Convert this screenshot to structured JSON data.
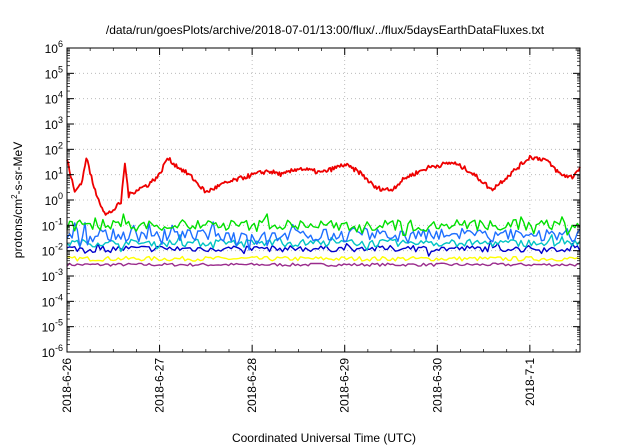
{
  "chart_data": {
    "type": "line",
    "title": "/data/run/goesPlots/archive/2018-07-01/13:00/flux/../flux/5daysEarthDataFluxes.txt",
    "xlabel": "Coordinated Universal Time (UTC)",
    "ylabel": {
      "pre": "protons/cm",
      "sup": "2",
      "post": "-s-sr-MeV"
    },
    "y_scale": "log",
    "ylim_exponent": [
      -6,
      6
    ],
    "y_ticks": [
      {
        "exp": "-6",
        "value": 1e-06
      },
      {
        "exp": "-5",
        "value": 1e-05
      },
      {
        "exp": "-4",
        "value": 0.0001
      },
      {
        "exp": "-3",
        "value": 0.001
      },
      {
        "exp": "-2",
        "value": 0.01
      },
      {
        "exp": "-1",
        "value": 0.1
      },
      {
        "exp": "0",
        "value": 1
      },
      {
        "exp": "1",
        "value": 10
      },
      {
        "exp": "2",
        "value": 100
      },
      {
        "exp": "3",
        "value": 1000
      },
      {
        "exp": "4",
        "value": 10000
      },
      {
        "exp": "5",
        "value": 100000
      },
      {
        "exp": "6",
        "value": 1000000
      }
    ],
    "y_tick_base": "10",
    "xlim": [
      "2018-06-26 00:00",
      "2018-07-01 13:00"
    ],
    "x_ticks": [
      "2018-6-26",
      "2018-6-27",
      "2018-6-28",
      "2018-6-29",
      "2018-6-30",
      "2018-7-1"
    ],
    "grid": true,
    "series": [
      {
        "color": "#9a2b8c",
        "base": 0.0028,
        "noise": 0.12,
        "spikes": 0.0
      },
      {
        "color": "#ffff00",
        "base": 0.0048,
        "noise": 0.18,
        "spikes": 0.0
      },
      {
        "color": "#0000cd",
        "base": 0.012,
        "noise": 0.25,
        "spikes": 0.15
      },
      {
        "color": "#00c4c4",
        "base": 0.02,
        "noise": 0.3,
        "spikes": 0.15
      },
      {
        "color": "#1e6fff",
        "base": 0.04,
        "noise": 0.5,
        "spikes": 0.25
      },
      {
        "color": "#00e000",
        "base": 0.1,
        "noise": 0.45,
        "spikes": 0.2
      },
      {
        "color": "#ee0000",
        "points": [
          [
            "2018-06-26 00:00",
            40
          ],
          [
            "2018-06-26 02:00",
            2
          ],
          [
            "2018-06-26 04:00",
            6
          ],
          [
            "2018-06-26 05:00",
            50
          ],
          [
            "2018-06-26 07:00",
            3
          ],
          [
            "2018-06-26 10:00",
            0.25
          ],
          [
            "2018-06-26 12:00",
            0.4
          ],
          [
            "2018-06-26 14:00",
            0.8
          ],
          [
            "2018-06-26 15:00",
            30
          ],
          [
            "2018-06-26 16:00",
            1.5
          ],
          [
            "2018-06-26 18:00",
            2.5
          ],
          [
            "2018-06-26 21:00",
            4
          ],
          [
            "2018-06-27 00:00",
            10
          ],
          [
            "2018-06-27 02:00",
            45
          ],
          [
            "2018-06-27 04:00",
            25
          ],
          [
            "2018-06-27 08:00",
            9
          ],
          [
            "2018-06-27 12:00",
            2
          ],
          [
            "2018-06-27 16:00",
            4
          ],
          [
            "2018-06-27 22:00",
            8
          ],
          [
            "2018-06-28 04:00",
            14
          ],
          [
            "2018-06-28 08:00",
            10
          ],
          [
            "2018-06-28 12:00",
            18
          ],
          [
            "2018-06-28 18:00",
            12
          ],
          [
            "2018-06-29 00:00",
            25
          ],
          [
            "2018-06-29 04:00",
            12
          ],
          [
            "2018-06-29 08:00",
            3
          ],
          [
            "2018-06-29 12:00",
            2.5
          ],
          [
            "2018-06-29 16:00",
            8
          ],
          [
            "2018-06-29 22:00",
            20
          ],
          [
            "2018-06-30 04:00",
            30
          ],
          [
            "2018-06-30 08:00",
            15
          ],
          [
            "2018-06-30 12:00",
            5
          ],
          [
            "2018-06-30 14:00",
            2.5
          ],
          [
            "2018-06-30 18:00",
            8
          ],
          [
            "2018-07-01 00:00",
            50
          ],
          [
            "2018-07-01 04:00",
            40
          ],
          [
            "2018-07-01 08:00",
            10
          ],
          [
            "2018-07-01 11:00",
            8
          ],
          [
            "2018-07-01 13:00",
            20
          ]
        ]
      }
    ]
  }
}
